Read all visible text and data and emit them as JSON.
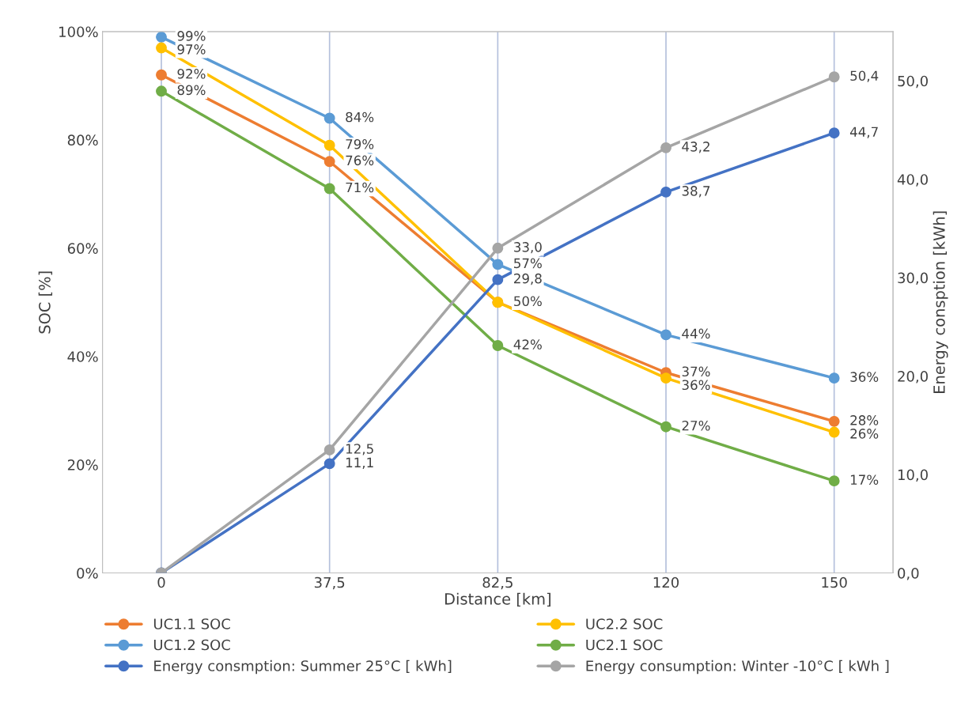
{
  "chart_data": {
    "type": "line",
    "categories": [
      "0",
      "37,5",
      "82,5",
      "120",
      "150"
    ],
    "xlabel": "Distance [km]",
    "ylabel": "SOC [%]",
    "y2label": "Energy consption [kWh]",
    "ylim": [
      0,
      100
    ],
    "yticks": [
      {
        "value": 0,
        "label": "0%"
      },
      {
        "value": 20,
        "label": "20%"
      },
      {
        "value": 40,
        "label": "40%"
      },
      {
        "value": 60,
        "label": "60%"
      },
      {
        "value": 80,
        "label": "80%"
      },
      {
        "value": 100,
        "label": "100%"
      }
    ],
    "y2lim": [
      0,
      55
    ],
    "y2ticks": [
      {
        "value": 0,
        "label": "0,0"
      },
      {
        "value": 10,
        "label": "10,0"
      },
      {
        "value": 20,
        "label": "20,0"
      },
      {
        "value": 30,
        "label": "30,0"
      },
      {
        "value": 40,
        "label": "40,0"
      },
      {
        "value": 50,
        "label": "50,0"
      }
    ],
    "grid": "x",
    "legend": "bottom",
    "marker": "circle",
    "line_style": "solid",
    "series": [
      {
        "name": "UC1.1 SOC",
        "color": "#ed7d31",
        "values": [
          92,
          76,
          50,
          37,
          28
        ],
        "value_labels": [
          "92%",
          "76%",
          "50%",
          "37%",
          "28%"
        ]
      },
      {
        "name": "UC1.2 SOC",
        "color": "#5b9bd5",
        "values": [
          99,
          84,
          57,
          44,
          36
        ],
        "value_labels": [
          "99%",
          "84%",
          "57%",
          "44%",
          "36%"
        ]
      },
      {
        "name": "Energy consmption: Summer 25°C [ kWh]",
        "color": "#4472c4",
        "axis": "y2",
        "values": [
          0,
          11.1,
          29.8,
          38.7,
          44.7
        ],
        "value_labels": [
          null,
          "11,1",
          "29,8",
          "38,7",
          "44,7"
        ]
      },
      {
        "name": "UC2.2 SOC",
        "color": "#ffc000",
        "values": [
          97,
          79,
          50,
          36,
          26
        ],
        "value_labels": [
          "97%",
          "79%",
          null,
          "36%",
          "26%"
        ]
      },
      {
        "name": "UC2.1 SOC",
        "color": "#70ad47",
        "values": [
          89,
          71,
          42,
          27,
          17
        ],
        "value_labels": [
          "89%",
          "71%",
          "42%",
          "27%",
          "17%"
        ]
      },
      {
        "name": "Energy consumption: Winter -10°C [ kWh ]",
        "color": "#a5a5a5",
        "axis": "y2",
        "values": [
          0,
          12.5,
          33.0,
          43.2,
          50.4
        ],
        "value_labels": [
          null,
          "12,5",
          "33,0",
          "43,2",
          "50,4"
        ]
      }
    ]
  }
}
